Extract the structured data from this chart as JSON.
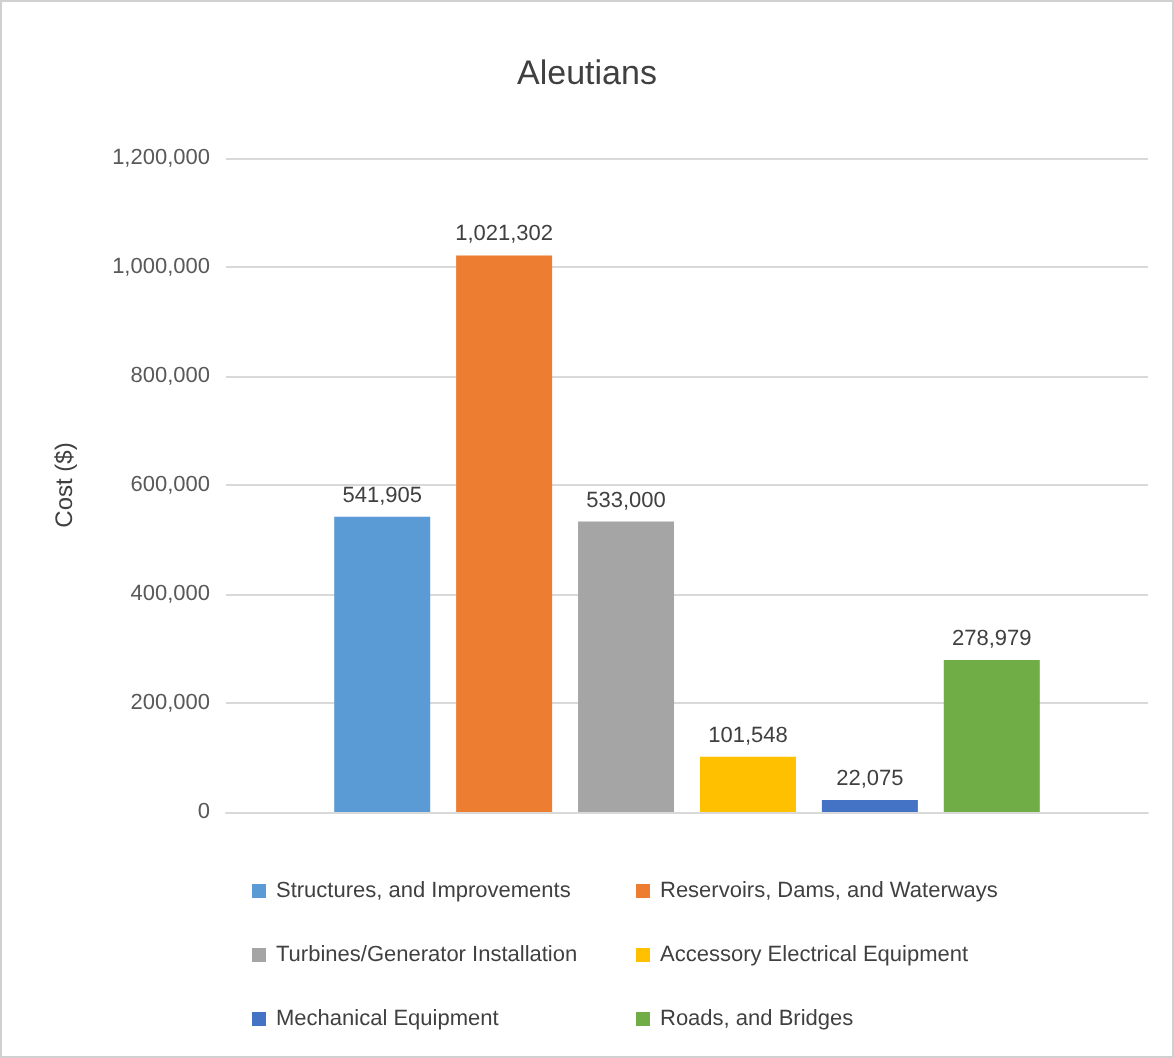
{
  "chart_data": {
    "type": "bar",
    "title": "Aleutians",
    "ylabel": "Cost ($)",
    "categories": [
      null
    ],
    "series": [
      {
        "name": "Structures, and Improvements",
        "color": "#5b9bd5",
        "values": [
          541905
        ],
        "value_labels": [
          "541,905"
        ]
      },
      {
        "name": "Reservoirs, Dams, and Waterways",
        "color": "#ed7d31",
        "values": [
          1021302
        ],
        "value_labels": [
          "1,021,302"
        ]
      },
      {
        "name": "Turbines/Generator Installation",
        "color": "#a5a5a5",
        "values": [
          533000
        ],
        "value_labels": [
          "533,000"
        ]
      },
      {
        "name": "Accessory Electrical Equipment",
        "color": "#ffc000",
        "values": [
          101548
        ],
        "value_labels": [
          "101,548"
        ]
      },
      {
        "name": "Mechanical Equipment",
        "color": "#4472c4",
        "values": [
          22075
        ],
        "value_labels": [
          "22,075"
        ]
      },
      {
        "name": "Roads, and Bridges",
        "color": "#70ad47",
        "values": [
          278979
        ],
        "value_labels": [
          "278,979"
        ]
      }
    ],
    "ylim": [
      0,
      1200000
    ],
    "yticks": [
      {
        "value": 0,
        "label": "0"
      },
      {
        "value": 200000,
        "label": "200,000"
      },
      {
        "value": 400000,
        "label": "400,000"
      },
      {
        "value": 600000,
        "label": "600,000"
      },
      {
        "value": 800000,
        "label": "800,000"
      },
      {
        "value": 1000000,
        "label": "1,000,000"
      },
      {
        "value": 1200000,
        "label": "1,200,000"
      }
    ],
    "grid": "y",
    "legend": "bottom"
  }
}
